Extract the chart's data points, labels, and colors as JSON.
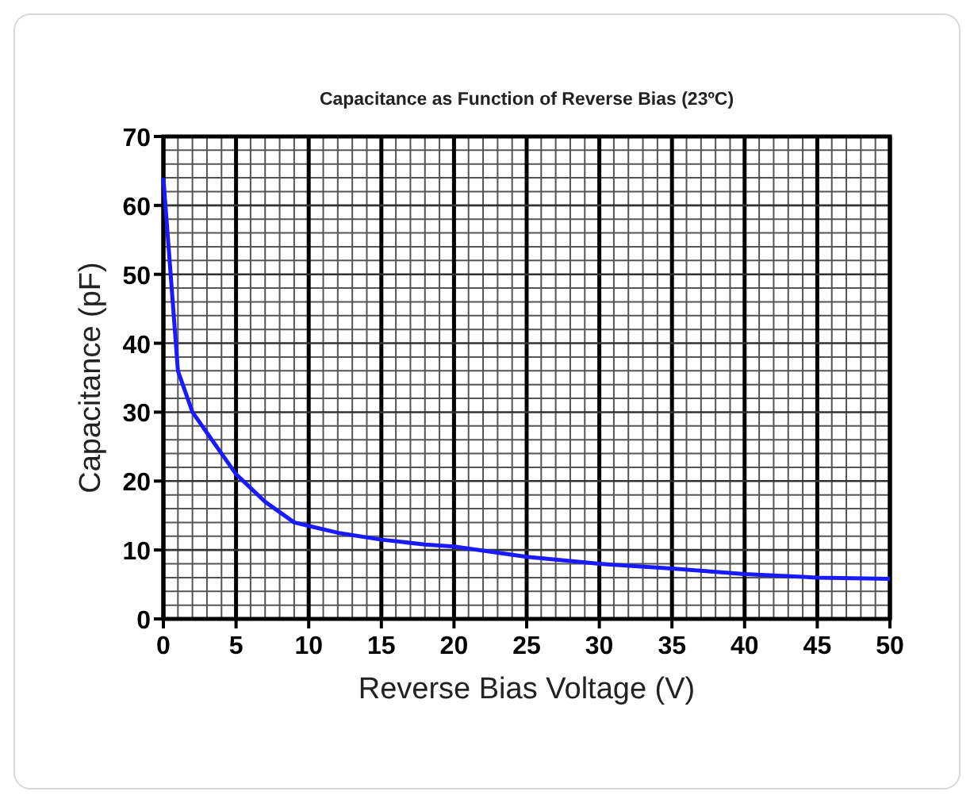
{
  "chart_data": {
    "type": "line",
    "title": "Capacitance as Function of Reverse Bias (23ºC)",
    "xlabel": "Reverse Bias Voltage (V)",
    "ylabel": "Capacitance (pF)",
    "x": [
      0,
      0.5,
      1,
      2,
      3,
      5,
      7,
      9,
      10,
      12,
      15,
      18,
      20,
      25,
      30,
      35,
      40,
      45,
      50
    ],
    "series": [
      {
        "color": "#1a1aff",
        "values": [
          64,
          50,
          36,
          30,
          27,
          21,
          17,
          14,
          13.5,
          12.5,
          11.5,
          10.8,
          10.5,
          9,
          8,
          7.3,
          6.5,
          6,
          5.8
        ]
      }
    ],
    "xlim": [
      0,
      50
    ],
    "ylim": [
      0,
      70
    ],
    "xticks": [
      0,
      5,
      10,
      15,
      20,
      25,
      30,
      35,
      40,
      45,
      50
    ],
    "yticks": [
      0,
      10,
      20,
      30,
      40,
      50,
      60,
      70
    ],
    "grid": true,
    "marker": "none",
    "line_style": "solid"
  }
}
